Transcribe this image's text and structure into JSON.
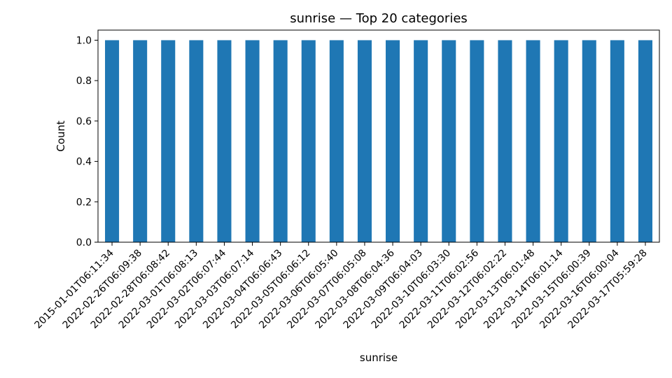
{
  "chart_data": {
    "type": "bar",
    "title": "sunrise — Top 20 categories",
    "xlabel": "sunrise",
    "ylabel": "Count",
    "ylim": [
      0,
      1.05
    ],
    "yticks": [
      "0.0",
      "0.2",
      "0.4",
      "0.6",
      "0.8",
      "1.0"
    ],
    "grid": false,
    "bar_color": "#1f77b4",
    "categories": [
      "2015-01-01T06:11:34",
      "2022-02-26T06:09:38",
      "2022-02-28T06:08:42",
      "2022-03-01T06:08:13",
      "2022-03-02T06:07:44",
      "2022-03-03T06:07:14",
      "2022-03-04T06:06:43",
      "2022-03-05T06:06:12",
      "2022-03-06T06:05:40",
      "2022-03-07T06:05:08",
      "2022-03-08T06:04:36",
      "2022-03-09T06:04:03",
      "2022-03-10T06:03:30",
      "2022-03-11T06:02:56",
      "2022-03-12T06:02:22",
      "2022-03-13T06:01:48",
      "2022-03-14T06:01:14",
      "2022-03-15T06:00:39",
      "2022-03-16T06:00:04",
      "2022-03-17T05:59:28"
    ],
    "values": [
      1,
      1,
      1,
      1,
      1,
      1,
      1,
      1,
      1,
      1,
      1,
      1,
      1,
      1,
      1,
      1,
      1,
      1,
      1,
      1
    ]
  }
}
